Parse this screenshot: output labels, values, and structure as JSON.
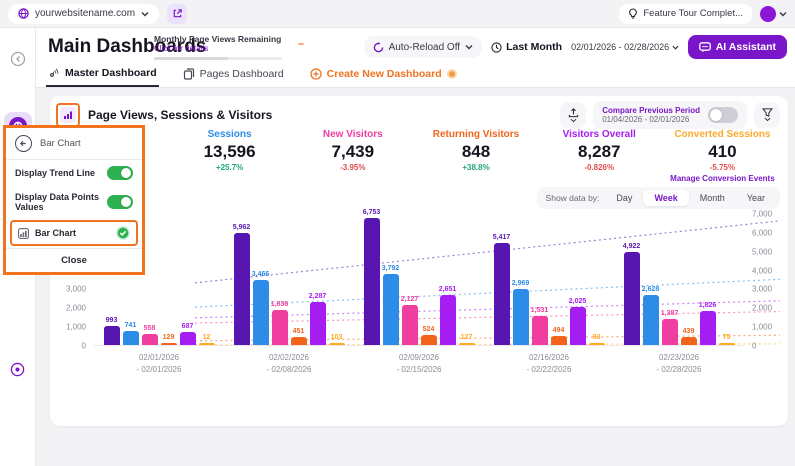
{
  "topbar": {
    "site_selector": "yourwebsitename.com",
    "feature_tour": "Feature Tour Complet..."
  },
  "header": {
    "title": "Main Dashboards",
    "page_views_remaining_label": "Monthly Page Views Remaining",
    "click_for_details": "Click for details",
    "auto_reload": "Auto-Reload Off",
    "last_month": "Last Month",
    "date_range": "02/01/2026 - 02/28/2026",
    "ai_assistant": "AI Assistant"
  },
  "tabs": [
    {
      "label": "Master Dashboard",
      "icon": "master-icon",
      "active": true
    },
    {
      "label": "Pages Dashboard",
      "icon": "pages-icon",
      "active": false
    },
    {
      "label": "Create New Dashboard",
      "icon": "plus-icon",
      "active": false,
      "accent": "#f0731f",
      "badge": true
    }
  ],
  "panel": {
    "title": "Bar Chart",
    "trend_label": "Display Trend Line",
    "trend_on": true,
    "points_label": "Display Data Points Values",
    "points_on": true,
    "chart_type_label": "Bar Chart",
    "chart_type_selected": true,
    "close_label": "Close"
  },
  "chart_card": {
    "title": "Page Views, Sessions & Visitors",
    "compare_label": "Compare Previous Period",
    "compare_range": "01/04/2026 - 02/01/2026",
    "compare_on": false,
    "manage_link": "Manage Conversion Events",
    "show_data_by": "Show data by:",
    "granularity": [
      "Day",
      "Week",
      "Month",
      "Year"
    ],
    "granularity_active": "Week",
    "stats": [
      {
        "label": "Sessions",
        "value": "13,596",
        "delta": "+25.7%",
        "color": "#2d8ce8",
        "delta_color": "#1fa971"
      },
      {
        "label": "New Visitors",
        "value": "7,439",
        "delta": "-3.95%",
        "color": "#f03da0",
        "delta_color": "#e24c4c"
      },
      {
        "label": "Returning Visitors",
        "value": "848",
        "delta": "+38.8%",
        "color": "#f2641c",
        "delta_color": "#1fa971"
      },
      {
        "label": "Visitors Overall",
        "value": "8,287",
        "delta": "-0.826%",
        "color": "#a61df2",
        "delta_color": "#e24c4c"
      },
      {
        "label": "Converted Sessions",
        "value": "410",
        "delta": "-5.75%",
        "color": "#fbaa2c",
        "delta_color": "#e24c4c",
        "link": true
      }
    ]
  },
  "chart_data": {
    "type": "bar",
    "title": "Page Views, Sessions & Visitors",
    "categories": [
      "02/01/2026 - 02/01/2026",
      "02/02/2026 - 02/08/2026",
      "02/09/2026 - 02/15/2026",
      "02/16/2026 - 02/22/2026",
      "02/23/2026 - 02/28/2026"
    ],
    "series": [
      {
        "name": "Page Views",
        "color": "#5816b0",
        "values": [
          993,
          5962,
          6753,
          5417,
          4922
        ]
      },
      {
        "name": "Sessions",
        "color": "#2d8ce8",
        "values": [
          741,
          3466,
          3792,
          2969,
          2628
        ]
      },
      {
        "name": "New Visitors",
        "color": "#f03da0",
        "values": [
          558,
          1836,
          2127,
          1531,
          1387
        ]
      },
      {
        "name": "Returning Visitors",
        "color": "#f2641c",
        "values": [
          129,
          451,
          524,
          494,
          439
        ]
      },
      {
        "name": "Visitors Overall",
        "color": "#a61df2",
        "values": [
          687,
          2287,
          2651,
          2025,
          1826
        ]
      },
      {
        "name": "Converted Sessions",
        "color": "#ffaa1f",
        "values": [
          12,
          103,
          127,
          93,
          75
        ]
      }
    ],
    "ylim": [
      0,
      7000
    ],
    "yticks": [
      0,
      1000,
      2000,
      3000,
      4000,
      5000,
      6000,
      7000
    ],
    "dual_y_axis": true,
    "gridlines": false,
    "trend_lines": "linear fit per series, dotted",
    "data_labels": true
  }
}
